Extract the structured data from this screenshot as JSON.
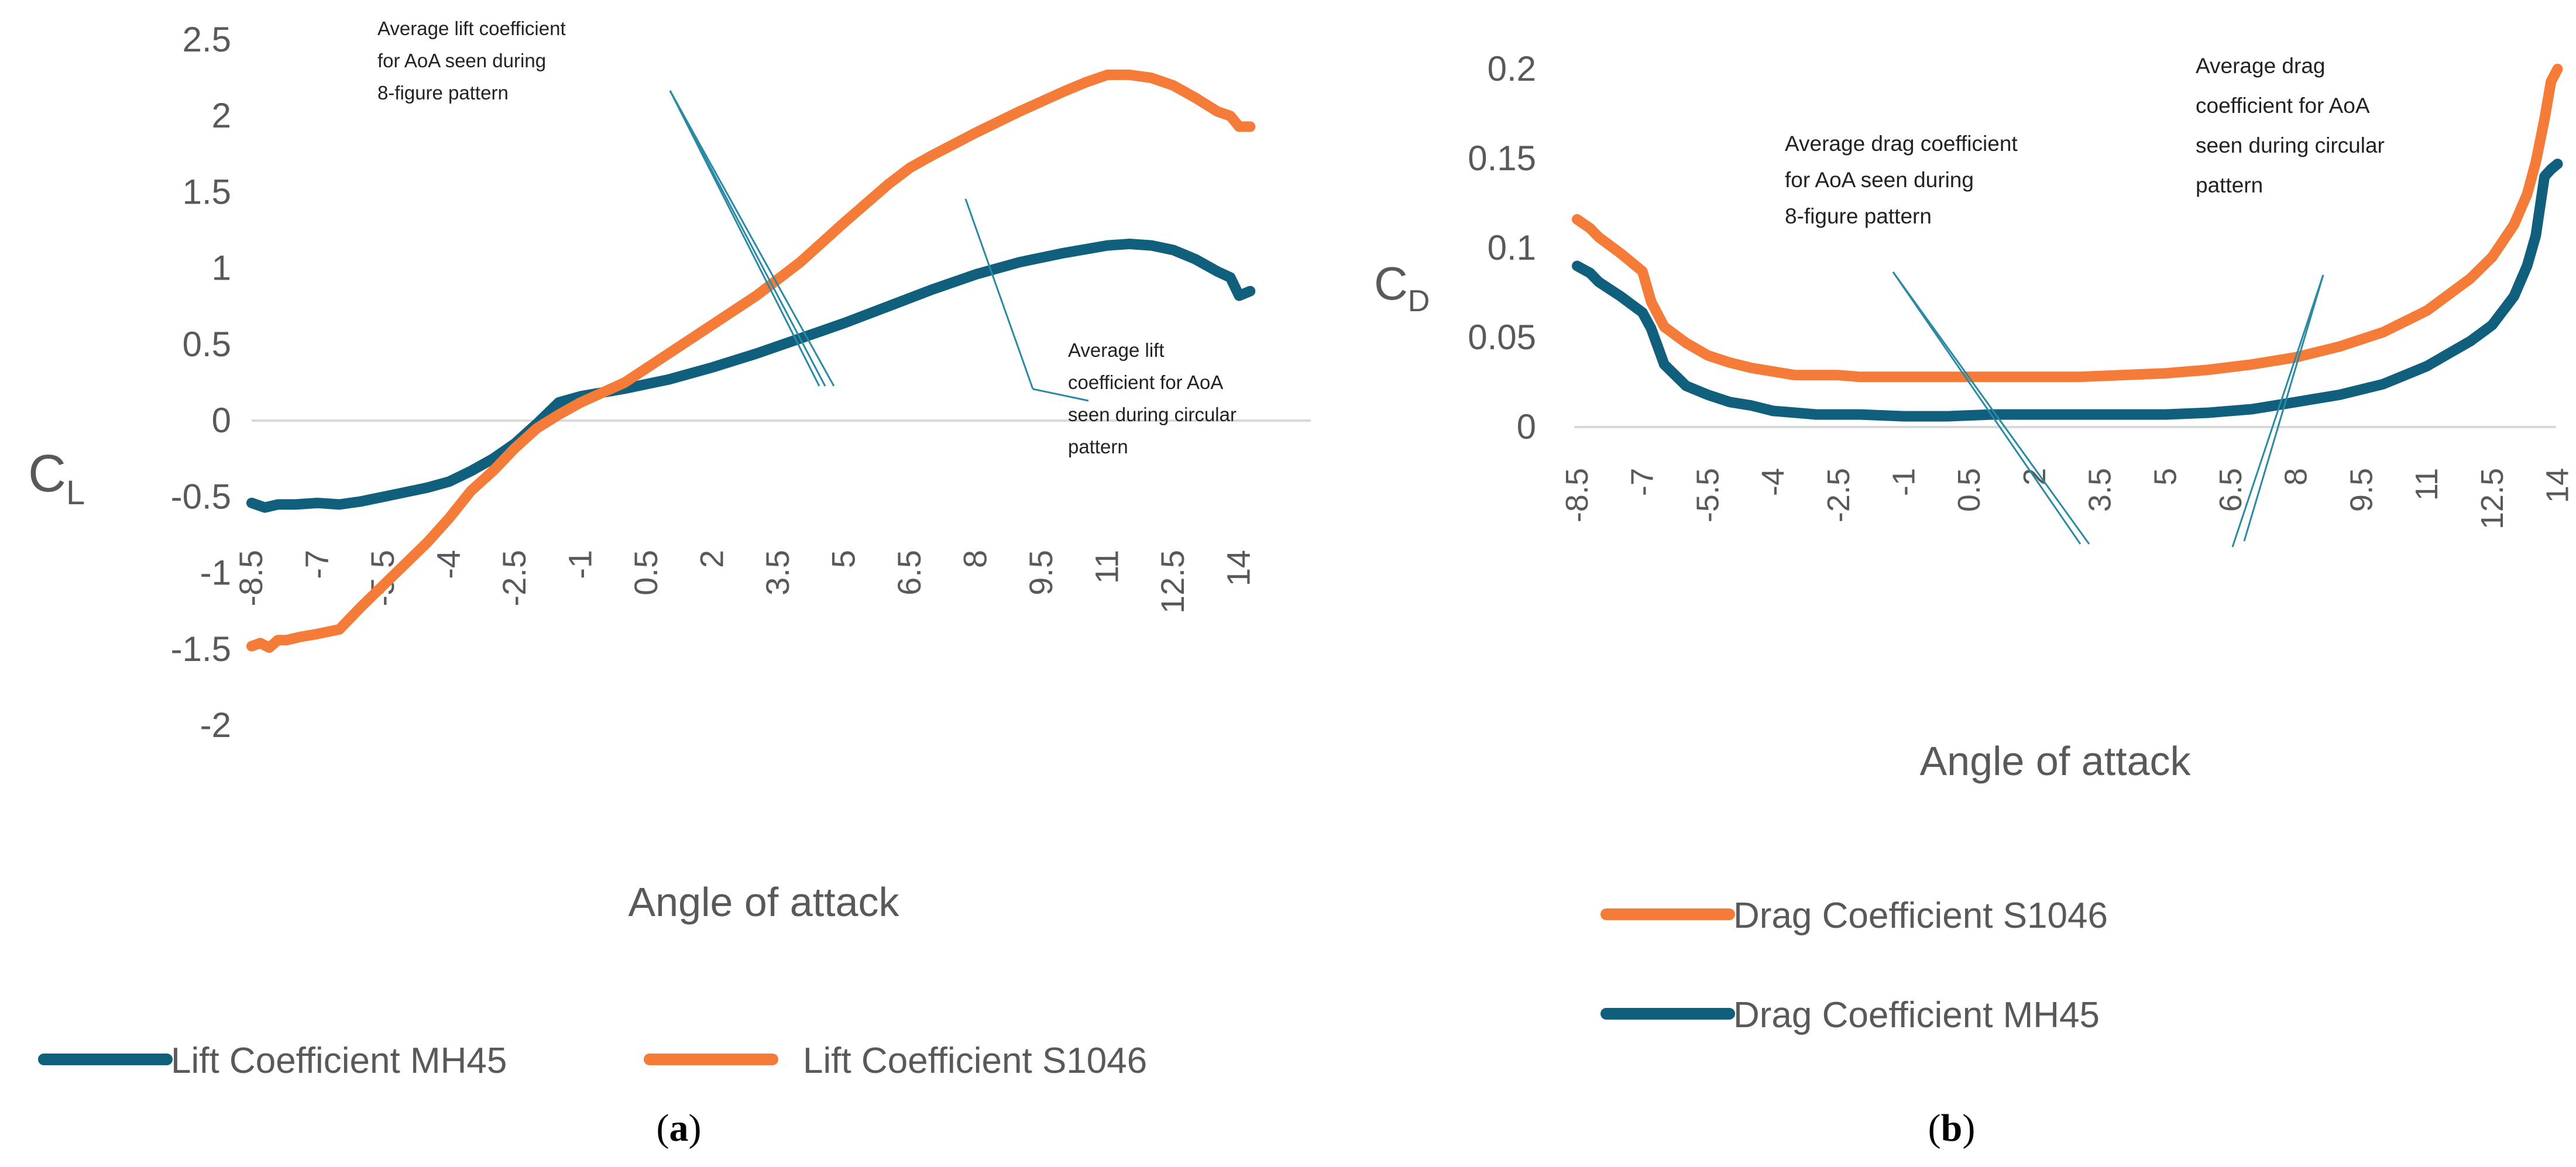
{
  "colors": {
    "orange": "#F47B38",
    "teal": "#0F5F7D",
    "annLine": "#2A8AA4",
    "text": "#595959"
  },
  "chart_data": [
    {
      "id": "a",
      "type": "line",
      "caption": "a",
      "xlabel": "Angle of attack",
      "ylabel": "C",
      "ylabel_sub": "L",
      "xlim": [
        -8.5,
        14.25
      ],
      "ylim": [
        -2,
        2.5
      ],
      "xticks": [
        "-8.5",
        "-7",
        "-5.5",
        "-4",
        "-2.5",
        "-1",
        "0.5",
        "2",
        "3.5",
        "5",
        "6.5",
        "8",
        "9.5",
        "11",
        "12.5",
        "14"
      ],
      "yticks": [
        "2.5",
        "2",
        "1.5",
        "1",
        "0.5",
        "0",
        "-0.5",
        "-1",
        "-1.5",
        "-2"
      ],
      "series": [
        {
          "name": "Lift Coefficient MH45",
          "color": "#0F5F7D",
          "x": [
            -8.5,
            -8.2,
            -7.9,
            -7.5,
            -7,
            -6.5,
            -6,
            -5.5,
            -5,
            -4.5,
            -4,
            -3.5,
            -3,
            -2.5,
            -2,
            -1.75,
            -1.5,
            -1,
            0,
            1,
            2,
            3,
            4,
            5,
            6,
            7,
            8,
            9,
            10,
            11,
            11.5,
            12,
            12.5,
            13,
            13.5,
            13.8,
            14,
            14.25
          ],
          "y": [
            -0.54,
            -0.57,
            -0.55,
            -0.55,
            -0.54,
            -0.55,
            -0.53,
            -0.5,
            -0.47,
            -0.44,
            -0.4,
            -0.33,
            -0.25,
            -0.15,
            -0.02,
            0.05,
            0.12,
            0.16,
            0.21,
            0.27,
            0.35,
            0.44,
            0.54,
            0.64,
            0.75,
            0.86,
            0.96,
            1.04,
            1.1,
            1.15,
            1.16,
            1.15,
            1.12,
            1.06,
            0.98,
            0.94,
            0.82,
            0.85
          ]
        },
        {
          "name": "Lift Coefficient S1046",
          "color": "#F47B38",
          "x": [
            -8.5,
            -8.3,
            -8.1,
            -7.9,
            -7.7,
            -7.4,
            -7,
            -6.5,
            -6,
            -5.5,
            -5,
            -4.5,
            -4,
            -3.5,
            -3,
            -2.5,
            -2,
            -1.5,
            -1,
            0,
            1,
            2,
            3,
            4,
            5,
            6,
            6.5,
            7,
            8,
            9,
            10,
            10.5,
            11,
            11.5,
            12,
            12.5,
            13,
            13.5,
            13.8,
            14,
            14.25
          ],
          "y": [
            -1.48,
            -1.46,
            -1.49,
            -1.44,
            -1.44,
            -1.42,
            -1.4,
            -1.37,
            -1.22,
            -1.08,
            -0.94,
            -0.8,
            -0.64,
            -0.46,
            -0.33,
            -0.18,
            -0.05,
            0.04,
            0.12,
            0.25,
            0.44,
            0.63,
            0.82,
            1.04,
            1.3,
            1.55,
            1.66,
            1.74,
            1.89,
            2.03,
            2.16,
            2.22,
            2.27,
            2.27,
            2.25,
            2.2,
            2.12,
            2.03,
            2.0,
            1.93,
            1.93
          ]
        }
      ],
      "annotations": [
        {
          "lines": [
            "Average lift coefficient",
            "for AoA seen during",
            "8-figure pattern"
          ]
        },
        {
          "lines": [
            "Average lift",
            "coefficient for AoA",
            "seen during circular",
            "pattern"
          ]
        }
      ],
      "legend": {
        "position": "bottom"
      }
    },
    {
      "id": "b",
      "type": "line",
      "caption": "b",
      "xlabel": "Angle of attack",
      "ylabel": "C",
      "ylabel_sub": "D",
      "xlim": [
        -8.5,
        14
      ],
      "ylim": [
        0,
        0.2
      ],
      "xticks": [
        "-8.5",
        "-7",
        "-5.5",
        "-4",
        "-2.5",
        "-1",
        "0.5",
        "2",
        "3.5",
        "5",
        "6.5",
        "8",
        "9.5",
        "11",
        "12.5",
        "14"
      ],
      "yticks": [
        "0.2",
        "0.15",
        "0.1",
        "0.05",
        "0"
      ],
      "series": [
        {
          "name": "Drag Coefficient S1046",
          "color": "#F47B38",
          "x": [
            -8.5,
            -8.2,
            -8,
            -7.5,
            -7,
            -6.8,
            -6.5,
            -6,
            -5.5,
            -5,
            -4.5,
            -4,
            -3.5,
            -3,
            -2.5,
            -2,
            -1,
            0,
            1,
            2,
            3,
            4,
            5,
            6,
            7,
            8,
            9,
            10,
            11,
            11.5,
            12,
            12.5,
            13,
            13.3,
            13.5,
            13.7,
            13.85,
            14
          ],
          "y": [
            0.116,
            0.111,
            0.106,
            0.097,
            0.087,
            0.07,
            0.056,
            0.047,
            0.04,
            0.036,
            0.033,
            0.031,
            0.029,
            0.029,
            0.029,
            0.028,
            0.028,
            0.028,
            0.028,
            0.028,
            0.028,
            0.029,
            0.03,
            0.032,
            0.035,
            0.039,
            0.045,
            0.053,
            0.065,
            0.074,
            0.083,
            0.095,
            0.113,
            0.13,
            0.148,
            0.172,
            0.193,
            0.2
          ]
        },
        {
          "name": "Drag Coefficient MH45",
          "color": "#0F5F7D",
          "x": [
            -8.5,
            -8.2,
            -8,
            -7.5,
            -7,
            -6.8,
            -6.5,
            -6,
            -5.5,
            -5,
            -4.5,
            -4,
            -3.5,
            -3,
            -2.5,
            -2,
            -1,
            0,
            1,
            2,
            3,
            4,
            5,
            6,
            7,
            8,
            9,
            10,
            11,
            11.5,
            12,
            12.5,
            13,
            13.3,
            13.5,
            13.7,
            13.85,
            14
          ],
          "y": [
            0.09,
            0.086,
            0.081,
            0.073,
            0.064,
            0.055,
            0.035,
            0.023,
            0.018,
            0.014,
            0.012,
            0.009,
            0.008,
            0.007,
            0.007,
            0.007,
            0.006,
            0.006,
            0.007,
            0.007,
            0.007,
            0.007,
            0.007,
            0.008,
            0.01,
            0.014,
            0.018,
            0.024,
            0.034,
            0.041,
            0.048,
            0.057,
            0.073,
            0.09,
            0.107,
            0.14,
            0.144,
            0.147
          ]
        }
      ],
      "annotations": [
        {
          "lines": [
            "Average drag coefficient",
            "for AoA seen during",
            "8-figure pattern"
          ]
        },
        {
          "lines": [
            "Average drag",
            "coefficient for AoA",
            "seen during circular",
            "pattern"
          ]
        }
      ],
      "legend": {
        "position": "bottom"
      }
    }
  ]
}
